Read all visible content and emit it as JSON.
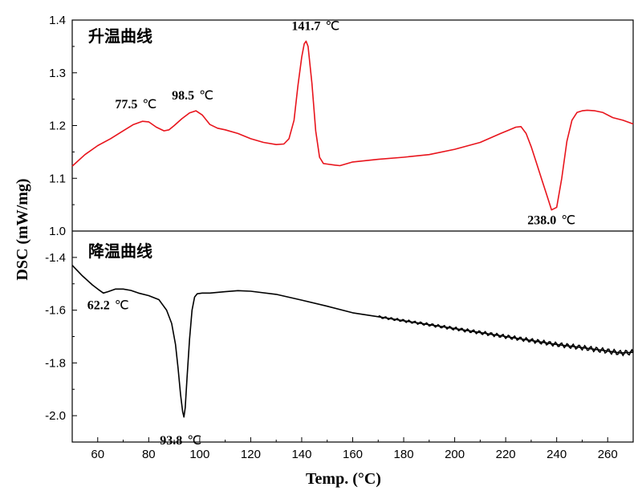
{
  "chart_data": {
    "type": "line",
    "xlabel": "Temp. (°C)",
    "xlim": [
      50,
      270
    ],
    "xticks": [
      60,
      80,
      100,
      120,
      140,
      160,
      180,
      200,
      220,
      240,
      260
    ],
    "grid": false,
    "panels": [
      {
        "label": "升温曲线",
        "ylabel": "DSC (mW/mg)",
        "ylim": [
          1.0,
          1.4
        ],
        "yticks": [
          "1.0",
          "1.1",
          "1.2",
          "1.3",
          "1.4"
        ],
        "series_color": "#e8141c",
        "series": [
          {
            "x": [
              50,
              55,
              60,
              65,
              70,
              74,
              77.5,
              80,
              83,
              86,
              88,
              90,
              93,
              96,
              98.5,
              101,
              104,
              107,
              110,
              115,
              120,
              125,
              130,
              133,
              135,
              137,
              138.5,
              140,
              141,
              141.7,
              142.5,
              144,
              145.5,
              147,
              148.5,
              150,
              153,
              155,
              160,
              170,
              180,
              190,
              200,
              210,
              218,
              224,
              226,
              228,
              230,
              232,
              234,
              236,
              238,
              240,
              242,
              244,
              246,
              248,
              250,
              252,
              255,
              258,
              262,
              266,
              270
            ],
            "y": [
              1.123,
              1.145,
              1.162,
              1.175,
              1.19,
              1.202,
              1.208,
              1.207,
              1.197,
              1.19,
              1.192,
              1.2,
              1.213,
              1.224,
              1.228,
              1.22,
              1.202,
              1.195,
              1.192,
              1.185,
              1.175,
              1.168,
              1.164,
              1.165,
              1.175,
              1.21,
              1.275,
              1.33,
              1.355,
              1.36,
              1.35,
              1.28,
              1.19,
              1.14,
              1.128,
              1.127,
              1.125,
              1.124,
              1.131,
              1.136,
              1.14,
              1.145,
              1.155,
              1.168,
              1.185,
              1.197,
              1.198,
              1.185,
              1.16,
              1.13,
              1.1,
              1.07,
              1.04,
              1.045,
              1.1,
              1.17,
              1.21,
              1.225,
              1.228,
              1.229,
              1.228,
              1.225,
              1.215,
              1.21,
              1.203
            ]
          }
        ],
        "annotations": [
          {
            "value": "77.5",
            "unit": "℃",
            "x": 77.5
          },
          {
            "value": "98.5",
            "unit": "℃",
            "x": 98.5
          },
          {
            "value": "141.7",
            "unit": "℃",
            "x": 141.7
          },
          {
            "value": "238.0",
            "unit": "℃",
            "x": 238.0
          }
        ]
      },
      {
        "label": "降温曲线",
        "ylabel": "DSC (mW/mg)",
        "ylim": [
          -2.1,
          -1.3
        ],
        "yticks": [
          "-2.0",
          "-1.8",
          "-1.6",
          "-1.4"
        ],
        "series_color": "#000000",
        "series": [
          {
            "x": [
              50,
              54,
              58,
              60,
              62.2,
              64,
              67,
              70,
              73,
              76,
              80,
              84,
              87,
              89,
              90.5,
              91.5,
              92.5,
              93.3,
              93.8,
              94.3,
              95,
              96,
              97,
              98,
              99,
              101,
              104,
              110,
              115,
              120,
              130,
              140,
              150,
              160,
              170,
              180,
              190,
              200,
              210,
              220,
              230,
              240,
              250,
              260,
              265,
              270
            ],
            "y": [
              -1.43,
              -1.47,
              -1.505,
              -1.52,
              -1.535,
              -1.53,
              -1.52,
              -1.52,
              -1.525,
              -1.535,
              -1.545,
              -1.56,
              -1.6,
              -1.65,
              -1.73,
              -1.82,
              -1.92,
              -1.985,
              -2.005,
              -1.97,
              -1.86,
              -1.71,
              -1.6,
              -1.55,
              -1.538,
              -1.535,
              -1.535,
              -1.53,
              -1.526,
              -1.528,
              -1.54,
              -1.562,
              -1.585,
              -1.61,
              -1.625,
              -1.64,
              -1.655,
              -1.67,
              -1.685,
              -1.7,
              -1.715,
              -1.73,
              -1.742,
              -1.755,
              -1.762,
              -1.76
            ]
          }
        ],
        "annotations": [
          {
            "value": "62.2",
            "unit": "℃",
            "x": 62.2
          },
          {
            "value": "93.8",
            "unit": "℃",
            "x": 93.8
          }
        ]
      }
    ]
  }
}
